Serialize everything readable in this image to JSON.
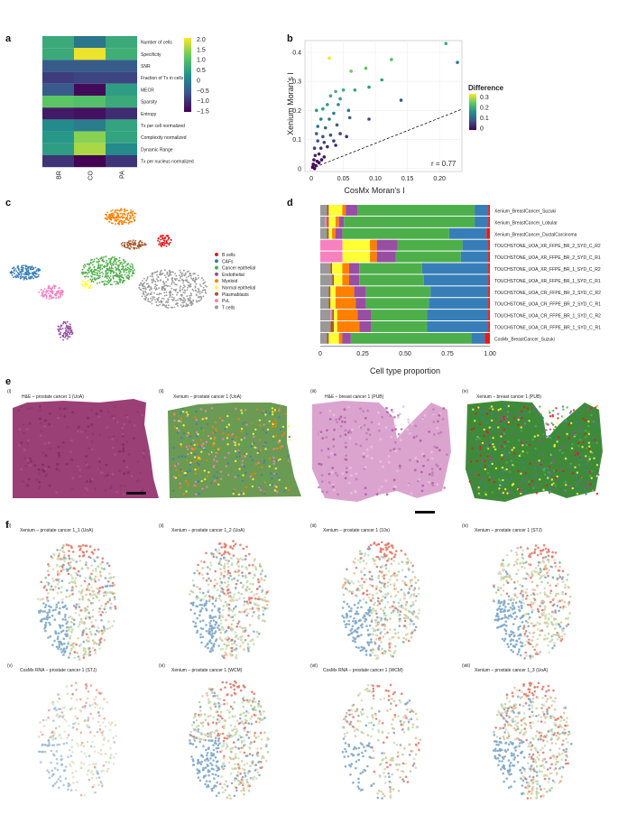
{
  "panel_labels": {
    "a": "a",
    "b": "b",
    "c": "c",
    "d": "d",
    "e": "e",
    "f": "f"
  },
  "colors": {
    "viridis": [
      "#440154",
      "#3b528b",
      "#21918c",
      "#5ec962",
      "#fde725"
    ],
    "cell_types": {
      "B cells": "#e41a1c",
      "CAFs": "#377eb8",
      "Cancer epithelial": "#4daf4a",
      "Endothelial": "#984ea3",
      "Myeloid": "#ff7f00",
      "Normal epithelial": "#ffff33",
      "Plasmablasts": "#a65628",
      "PVL": "#f781bf",
      "T cells": "#999999"
    }
  },
  "heatmap": {
    "columns": [
      "BR",
      "CO",
      "PA"
    ],
    "rows": [
      "Number of cells",
      "Specificity",
      "SNR",
      "Fraction of Tx in cells",
      "MECR",
      "Sparsity",
      "Entropy",
      "Tx per cell normalized",
      "Complexity normalized",
      "Dynamic Range",
      "Tx per nucleus normalized"
    ],
    "values": [
      [
        0.6,
        -0.2,
        0.6
      ],
      [
        0.6,
        2.0,
        0.7
      ],
      [
        -0.6,
        -0.6,
        -0.6
      ],
      [
        -1.0,
        -0.9,
        -0.9
      ],
      [
        -0.6,
        -1.6,
        0.4
      ],
      [
        1.1,
        1.0,
        0.6
      ],
      [
        -1.4,
        -1.5,
        -1.2
      ],
      [
        0.1,
        -0.1,
        0.5
      ],
      [
        0.3,
        1.4,
        0.5
      ],
      [
        0.4,
        1.6,
        0.1
      ],
      [
        -1.1,
        -1.7,
        -1.1
      ]
    ],
    "colorbar_ticks": [
      "2.0",
      "1.5",
      "1.0",
      "0.5",
      "0",
      "−0.5",
      "−1.0",
      "−1.5"
    ],
    "vmin": -1.7,
    "vmax": 2.1
  },
  "chart_data": [
    {
      "type": "scatter",
      "title": "",
      "xlabel": "CosMx Moran's I",
      "ylabel": "Xenium Moran's I",
      "xlim": [
        -0.01,
        0.235
      ],
      "ylim": [
        -0.01,
        0.44
      ],
      "xticks": [
        "0",
        "0.05",
        "0.10",
        "0.15",
        "0.20"
      ],
      "yticks": [
        "0",
        "0.1",
        "0.2",
        "0.3",
        "0.4"
      ],
      "annotation": "r = 0.77",
      "legend_title": "Difference",
      "legend_ticks": [
        "0.3",
        "0.2",
        "0.1",
        "0"
      ],
      "diff_range": [
        0,
        0.35
      ],
      "points": [
        {
          "x": 0.21,
          "y": 0.43
        },
        {
          "x": 0.228,
          "y": 0.365
        },
        {
          "x": 0.125,
          "y": 0.375
        },
        {
          "x": 0.085,
          "y": 0.345
        },
        {
          "x": 0.028,
          "y": 0.38
        },
        {
          "x": 0.062,
          "y": 0.335
        },
        {
          "x": 0.11,
          "y": 0.305
        },
        {
          "x": 0.09,
          "y": 0.28
        },
        {
          "x": 0.14,
          "y": 0.235
        },
        {
          "x": 0.09,
          "y": 0.17
        },
        {
          "x": 0.068,
          "y": 0.27
        },
        {
          "x": 0.045,
          "y": 0.24
        },
        {
          "x": 0.058,
          "y": 0.2
        },
        {
          "x": 0.06,
          "y": 0.175
        },
        {
          "x": 0.05,
          "y": 0.27
        },
        {
          "x": 0.038,
          "y": 0.265
        },
        {
          "x": 0.042,
          "y": 0.22
        },
        {
          "x": 0.03,
          "y": 0.25
        },
        {
          "x": 0.025,
          "y": 0.22
        },
        {
          "x": 0.018,
          "y": 0.205
        },
        {
          "x": 0.008,
          "y": 0.2
        },
        {
          "x": 0.035,
          "y": 0.19
        },
        {
          "x": 0.028,
          "y": 0.17
        },
        {
          "x": 0.015,
          "y": 0.17
        },
        {
          "x": 0.04,
          "y": 0.15
        },
        {
          "x": 0.022,
          "y": 0.14
        },
        {
          "x": 0.01,
          "y": 0.145
        },
        {
          "x": 0.045,
          "y": 0.12
        },
        {
          "x": 0.03,
          "y": 0.115
        },
        {
          "x": 0.018,
          "y": 0.11
        },
        {
          "x": 0.008,
          "y": 0.12
        },
        {
          "x": 0.055,
          "y": 0.11
        },
        {
          "x": 0.035,
          "y": 0.095
        },
        {
          "x": 0.02,
          "y": 0.09
        },
        {
          "x": 0.01,
          "y": 0.095
        },
        {
          "x": 0.025,
          "y": 0.075
        },
        {
          "x": 0.015,
          "y": 0.07
        },
        {
          "x": 0.005,
          "y": 0.07
        },
        {
          "x": 0.038,
          "y": 0.08
        },
        {
          "x": 0.012,
          "y": 0.05
        },
        {
          "x": 0.006,
          "y": 0.045
        },
        {
          "x": 0.02,
          "y": 0.04
        },
        {
          "x": 0.004,
          "y": 0.03
        },
        {
          "x": 0.009,
          "y": 0.025
        },
        {
          "x": 0.003,
          "y": 0.015
        },
        {
          "x": 0.007,
          "y": 0.01
        },
        {
          "x": 0.002,
          "y": 0.005
        },
        {
          "x": 0.012,
          "y": 0.02
        },
        {
          "x": 0.005,
          "y": 0.0
        },
        {
          "x": 0.016,
          "y": 0.03
        }
      ]
    },
    {
      "type": "bar",
      "title": "",
      "xlabel": "Cell type proportion",
      "ylabel": "",
      "xlim": [
        0,
        1
      ],
      "xticks": [
        "0",
        "0.25",
        "0.50",
        "0.75",
        "1.00"
      ],
      "categories": [
        "Xenium_BreastCancer_Suzuki",
        "Xenium_BreastCancer_Lobular",
        "Xenium_BreastCancer_DuctalCarcinoma",
        "TOUCHSTONE_UOA_XR_FFPE_BR_2_SYD_C_R2",
        "TOUCHSTONE_UOA_XR_FFPE_BR_2_SYD_C_R1",
        "TOUCHSTONE_UOA_XR_FFPE_BR_1_SYD_C_R2",
        "TOUCHSTONE_UOA_XR_FFPE_BR_1_SYD_C_R1",
        "TOUCHSTONE_UOA_CR_FFPE_BR_2_SYD_C_R2",
        "TOUCHSTONE_UOA_CR_FFPE_BR_2_SYD_C_R1",
        "TOUCHSTONE_UOA_CR_FFPE_BR_1_SYD_C_R2",
        "TOUCHSTONE_UOA_CR_FFPE_BR_1_SYD_C_R1",
        "CosMx_BreastCancer_Suzuki"
      ],
      "series": [
        {
          "name": "T cells",
          "values": [
            0.04,
            0.03,
            0.04,
            0.0,
            0.0,
            0.06,
            0.07,
            0.05,
            0.05,
            0.06,
            0.06,
            0.04
          ]
        },
        {
          "name": "PVL",
          "values": [
            0.0,
            0.01,
            0.0,
            0.13,
            0.13,
            0.0,
            0.0,
            0.0,
            0.0,
            0.01,
            0.0,
            0.0
          ]
        },
        {
          "name": "Plasmablasts",
          "values": [
            0.01,
            0.01,
            0.01,
            0.0,
            0.0,
            0.01,
            0.01,
            0.01,
            0.01,
            0.01,
            0.02,
            0.01
          ]
        },
        {
          "name": "Normal epithelial",
          "values": [
            0.08,
            0.04,
            0.02,
            0.16,
            0.16,
            0.06,
            0.05,
            0.03,
            0.03,
            0.02,
            0.02,
            0.06
          ]
        },
        {
          "name": "Myeloid",
          "values": [
            0.02,
            0.02,
            0.02,
            0.04,
            0.04,
            0.04,
            0.04,
            0.11,
            0.12,
            0.12,
            0.13,
            0.02
          ]
        },
        {
          "name": "Endothelial",
          "values": [
            0.07,
            0.03,
            0.04,
            0.12,
            0.11,
            0.06,
            0.06,
            0.07,
            0.06,
            0.08,
            0.07,
            0.05
          ]
        },
        {
          "name": "Cancer epithelial",
          "values": [
            0.69,
            0.77,
            0.63,
            0.38,
            0.38,
            0.37,
            0.38,
            0.38,
            0.37,
            0.33,
            0.33,
            0.71
          ]
        },
        {
          "name": "CAFs",
          "values": [
            0.08,
            0.08,
            0.22,
            0.15,
            0.16,
            0.39,
            0.38,
            0.34,
            0.35,
            0.36,
            0.36,
            0.08
          ]
        },
        {
          "name": "B cells",
          "values": [
            0.01,
            0.01,
            0.02,
            0.01,
            0.01,
            0.01,
            0.01,
            0.01,
            0.01,
            0.01,
            0.01,
            0.03
          ]
        }
      ]
    }
  ],
  "legend_c": [
    "B cells",
    "CAFs",
    "Cancer epithelial",
    "Endothelial",
    "Myeloid",
    "Normal epithelial",
    "Plasmablasts",
    "PvL",
    "T cells"
  ],
  "panel_e": [
    {
      "idx": "(i)",
      "title": "H&E – prostate cancer 1 (UoA)"
    },
    {
      "idx": "(ii)",
      "title": "Xenium – prostate cancer 1 (UoA)"
    },
    {
      "idx": "(iii)",
      "title": "H&E – breast cancer 1 (PUB)"
    },
    {
      "idx": "(iv)",
      "title": "Xenium – breast cancer 1 (PUB)"
    }
  ],
  "panel_f": [
    {
      "idx": "(i)",
      "title": "Xenium – prostate cancer 1_1 (UoA)"
    },
    {
      "idx": "(ii)",
      "title": "Xenium – prostate cancer 1_2 (UoA)"
    },
    {
      "idx": "(iii)",
      "title": "Xenium – prostate cancer 1 (10x)"
    },
    {
      "idx": "(iv)",
      "title": "Xenium – prostate cancer 1 (STJ)"
    },
    {
      "idx": "(v)",
      "title": "CosMx RNA – prostate cancer 1 (STJ)"
    },
    {
      "idx": "(vi)",
      "title": "Xenium – prostate cancer 1 (WCM)"
    },
    {
      "idx": "(vii)",
      "title": "CosMx RNA – prostate cancer 1 (WCM)"
    },
    {
      "idx": "(viii)",
      "title": "Xenium – prostate cancer 1_3 (UoA)"
    }
  ]
}
